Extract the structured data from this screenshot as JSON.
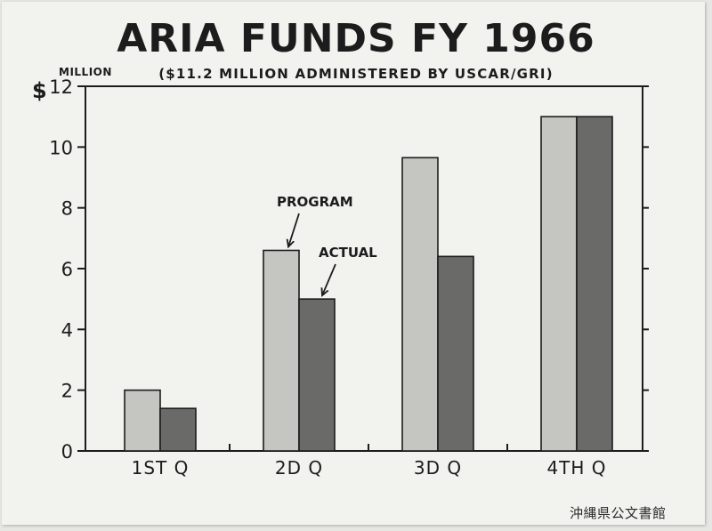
{
  "colors": {
    "background": "#f2f2ef",
    "program_fill": "#c5c5c1",
    "actual_fill": "#6a6a68",
    "ink": "#1c1c1c"
  },
  "chart_data": {
    "type": "bar",
    "title": "ARIA FUNDS FY 1966",
    "subtitle": "($11.2 MILLION ADMINISTERED BY USCAR/GRI)",
    "ylabel_symbol": "$",
    "ylabel_unit": "MILLION",
    "xlabel": "",
    "categories": [
      "1ST Q",
      "2D Q",
      "3D Q",
      "4TH Q"
    ],
    "series": [
      {
        "name": "PROGRAM",
        "values": [
          2.0,
          6.6,
          9.65,
          11.0
        ]
      },
      {
        "name": "ACTUAL",
        "values": [
          1.4,
          5.0,
          6.4,
          11.0
        ]
      }
    ],
    "ylim": [
      0,
      12
    ],
    "yticks": [
      0,
      2,
      4,
      6,
      8,
      10,
      12
    ],
    "grid": false,
    "legend": "inline arrow annotations"
  },
  "annotations": {
    "program": "PROGRAM",
    "actual": "ACTUAL"
  },
  "archive_stamp": "沖縄県公文書館"
}
